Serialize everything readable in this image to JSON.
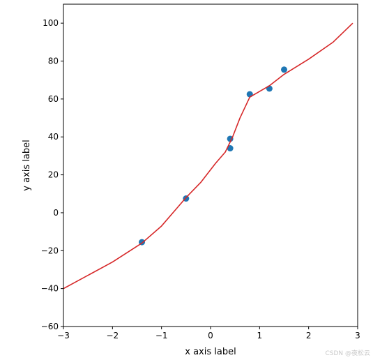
{
  "chart_data": {
    "type": "scatter",
    "title": "",
    "xlabel": "x axis label",
    "ylabel": "y axis label",
    "xlim": [
      -3,
      3
    ],
    "ylim": [
      -60,
      110
    ],
    "grid": false,
    "x_ticks": [
      -3,
      -2,
      -1,
      0,
      1,
      2,
      3
    ],
    "x_tick_labels": [
      "−3",
      "−2",
      "−1",
      "0",
      "1",
      "2",
      "3"
    ],
    "y_ticks": [
      -60,
      -40,
      -20,
      0,
      20,
      40,
      60,
      80,
      100
    ],
    "y_tick_labels": [
      "−60",
      "−40",
      "−20",
      "0",
      "20",
      "40",
      "60",
      "80",
      "100"
    ],
    "series": [
      {
        "kind": "scatter",
        "color": "#1f77b4",
        "points": [
          {
            "x": -1.4,
            "y": -15.5
          },
          {
            "x": -0.5,
            "y": 7.5
          },
          {
            "x": 0.4,
            "y": 39
          },
          {
            "x": 0.4,
            "y": 34
          },
          {
            "x": 0.8,
            "y": 62.5
          },
          {
            "x": 1.2,
            "y": 65.5
          },
          {
            "x": 1.5,
            "y": 75.5
          }
        ]
      },
      {
        "kind": "line",
        "color": "#d62728",
        "points": [
          {
            "x": -3.0,
            "y": -40
          },
          {
            "x": -2.0,
            "y": -26
          },
          {
            "x": -1.4,
            "y": -16
          },
          {
            "x": -1.0,
            "y": -7
          },
          {
            "x": -0.7,
            "y": 2
          },
          {
            "x": -0.5,
            "y": 8
          },
          {
            "x": -0.2,
            "y": 16
          },
          {
            "x": 0.1,
            "y": 26
          },
          {
            "x": 0.3,
            "y": 32
          },
          {
            "x": 0.45,
            "y": 40
          },
          {
            "x": 0.6,
            "y": 50
          },
          {
            "x": 0.8,
            "y": 61
          },
          {
            "x": 1.2,
            "y": 67
          },
          {
            "x": 1.5,
            "y": 73
          },
          {
            "x": 2.0,
            "y": 81
          },
          {
            "x": 2.5,
            "y": 90
          },
          {
            "x": 2.9,
            "y": 100
          }
        ]
      }
    ]
  },
  "watermark": "CSDN @夜松云"
}
